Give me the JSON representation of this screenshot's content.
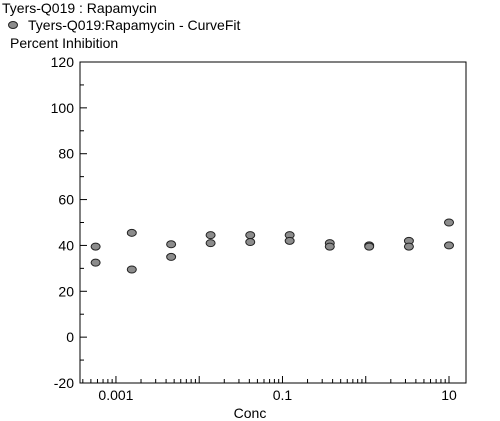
{
  "chart_data": {
    "type": "scatter",
    "title": "Tyers-Q019  : Rapamycin",
    "legend": [
      "Tyers-Q019:Rapamycin - CurveFit"
    ],
    "legend_placement": "top-left",
    "ylabel": "Percent Inhibition",
    "xlabel": "Conc",
    "x_scale": "log",
    "xlim": [
      0.00037,
      16
    ],
    "ylim": [
      -20,
      120
    ],
    "y_ticks": [
      -20,
      0,
      20,
      40,
      60,
      80,
      100,
      120
    ],
    "x_ticks": [
      0.001,
      0.1,
      10
    ],
    "x_tick_labels": [
      "0.001",
      "0.1",
      "10"
    ],
    "y_tick_labels": [
      "-20",
      "0",
      "20",
      "40",
      "60",
      "80",
      "100",
      "120"
    ],
    "grid": false,
    "marker_color": "#8c8c8c",
    "series": [
      {
        "points": [
          {
            "x": 0.00057,
            "y": 39.5
          },
          {
            "x": 0.00057,
            "y": 32.5
          },
          {
            "x": 0.00155,
            "y": 45.5
          },
          {
            "x": 0.00155,
            "y": 29.5
          },
          {
            "x": 0.0046,
            "y": 40.5
          },
          {
            "x": 0.0046,
            "y": 35
          },
          {
            "x": 0.0137,
            "y": 44.5
          },
          {
            "x": 0.0137,
            "y": 41
          },
          {
            "x": 0.041,
            "y": 44.5
          },
          {
            "x": 0.041,
            "y": 41.5
          },
          {
            "x": 0.122,
            "y": 44.5
          },
          {
            "x": 0.122,
            "y": 42
          },
          {
            "x": 0.37,
            "y": 41
          },
          {
            "x": 0.37,
            "y": 39.5
          },
          {
            "x": 1.1,
            "y": 40
          },
          {
            "x": 1.1,
            "y": 39.5
          },
          {
            "x": 3.3,
            "y": 42
          },
          {
            "x": 3.3,
            "y": 39.5
          },
          {
            "x": 10,
            "y": 50
          },
          {
            "x": 10,
            "y": 40
          }
        ]
      }
    ]
  }
}
